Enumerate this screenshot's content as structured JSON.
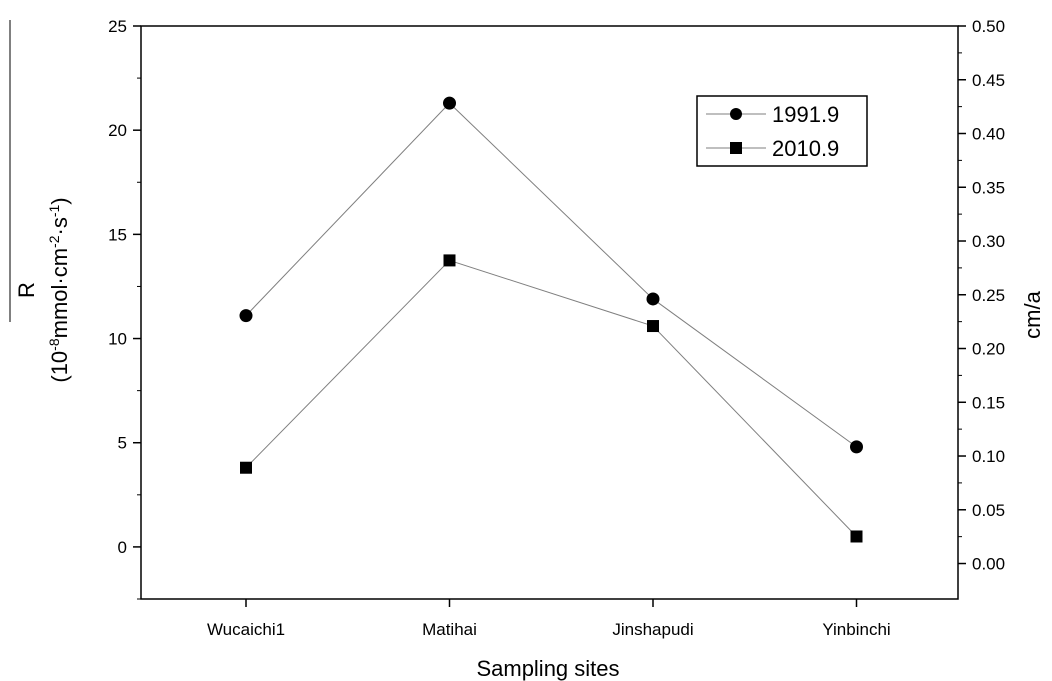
{
  "chart_data": {
    "type": "line",
    "xlabel": "Sampling sites",
    "categories": [
      "Wucaichi1",
      "Matihai",
      "Jinshapudi",
      "Yinbinchi"
    ],
    "y_left": {
      "label_symbol": "R",
      "label_units_prefix": "(10",
      "label_units_exp1": "-8",
      "label_units_mid": "mmol·cm",
      "label_units_exp2": "-2",
      "label_units_mid2": "·s",
      "label_units_exp3": "-1",
      "label_units_suffix": ")",
      "lim": [
        -2.5,
        25
      ],
      "ticks": [
        0,
        5,
        10,
        15,
        20,
        25
      ],
      "tick_labels": [
        "0",
        "5",
        "10",
        "15",
        "20",
        "25"
      ]
    },
    "y_right": {
      "label": "cm/a",
      "lim": [
        -0.033,
        0.5
      ],
      "ticks": [
        0.0,
        0.05,
        0.1,
        0.15,
        0.2,
        0.25,
        0.3,
        0.35,
        0.4,
        0.45,
        0.5
      ],
      "tick_labels": [
        "0.00",
        "0.05",
        "0.10",
        "0.15",
        "0.20",
        "0.25",
        "0.30",
        "0.35",
        "0.40",
        "0.45",
        "0.50"
      ]
    },
    "series": [
      {
        "name": "1991.9",
        "marker": "circle",
        "values": [
          11.1,
          21.3,
          11.9,
          4.8
        ]
      },
      {
        "name": "2010.9",
        "marker": "square",
        "values": [
          3.8,
          13.75,
          10.6,
          0.5
        ]
      }
    ],
    "legend_position": "top-right",
    "line_color": "#7f7f7f",
    "marker_color": "#000000"
  }
}
